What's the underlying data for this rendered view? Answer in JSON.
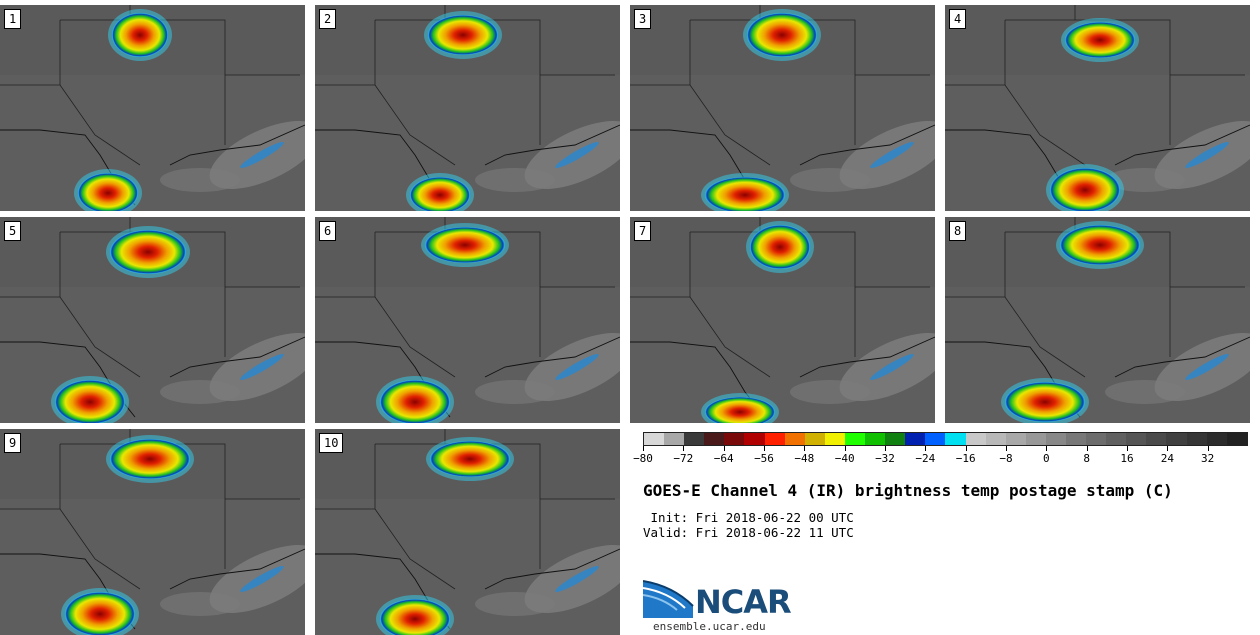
{
  "panels": [
    {
      "label": "1"
    },
    {
      "label": "2"
    },
    {
      "label": "3"
    },
    {
      "label": "4"
    },
    {
      "label": "5"
    },
    {
      "label": "6"
    },
    {
      "label": "7"
    },
    {
      "label": "8"
    },
    {
      "label": "9"
    },
    {
      "label": "10"
    }
  ],
  "colorbar": {
    "colors": [
      "#d8d8d8",
      "#a8a8a8",
      "#3a3a3a",
      "#4a1a1a",
      "#7a0a0a",
      "#b00000",
      "#ff2000",
      "#f07000",
      "#d0b000",
      "#f0f000",
      "#20ff00",
      "#10c000",
      "#108010",
      "#0020b0",
      "#0060ff",
      "#00e0f0",
      "#c8c8c8",
      "#b8b8b8",
      "#a8a8a8",
      "#989898",
      "#888888",
      "#787878",
      "#6c6c6c",
      "#606060",
      "#555555",
      "#4a4a4a",
      "#404040",
      "#363636",
      "#2c2c2c",
      "#222222"
    ],
    "min": -80,
    "max": 40,
    "tick_labels": [
      "−80",
      "−72",
      "−64",
      "−56",
      "−48",
      "−40",
      "−32",
      "−24",
      "−16",
      "−8",
      "0",
      "8",
      "16",
      "24",
      "32"
    ],
    "tick_values": [
      -80,
      -72,
      -64,
      -56,
      -48,
      -40,
      -32,
      -24,
      -16,
      -8,
      0,
      8,
      16,
      24,
      32
    ]
  },
  "title": "GOES-E Channel 4 (IR) brightness temp postage stamp (C)",
  "init_line": " Init: Fri 2018-06-22 00 UTC",
  "valid_line": "Valid: Fri 2018-06-22 11 UTC",
  "logo_text": "NCAR",
  "url": "ensemble.ucar.edu"
}
